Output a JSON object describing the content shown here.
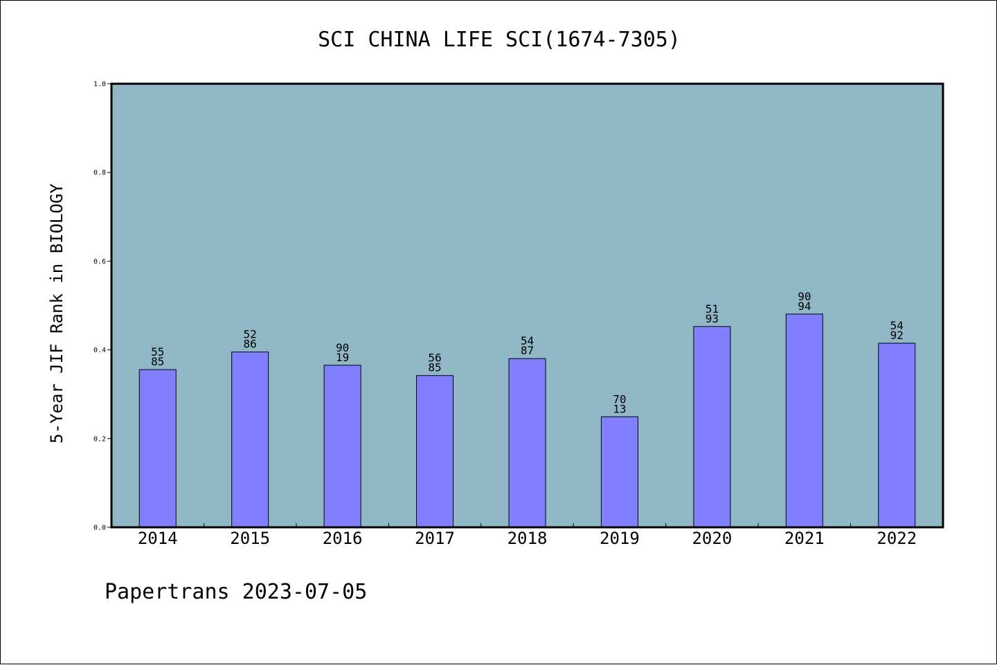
{
  "chart_data": {
    "type": "bar",
    "title": "SCI CHINA LIFE SCI(1674-7305)",
    "xlabel": "",
    "ylabel": "5-Year JIF Rank in BIOLOGY",
    "ylim": [
      0.0,
      1.0
    ],
    "yticks": [
      "0.0",
      "0.2",
      "0.4",
      "0.6",
      "0.8",
      "1.0"
    ],
    "grid": false,
    "legend": "none",
    "categories": [
      "2014",
      "2015",
      "2016",
      "2017",
      "2018",
      "2019",
      "2020",
      "2021",
      "2022"
    ],
    "values": [
      0.3555,
      0.3952,
      0.3654,
      0.3421,
      0.3803,
      0.2492,
      0.4527,
      0.4807,
      0.415
    ],
    "data_labels": [
      [
        "55",
        "85"
      ],
      [
        "52",
        "86"
      ],
      [
        "90",
        "19"
      ],
      [
        "56",
        "85"
      ],
      [
        "54",
        "87"
      ],
      [
        "70",
        "13"
      ],
      [
        "51",
        "93"
      ],
      [
        "90",
        "94"
      ],
      [
        "54",
        "92"
      ]
    ],
    "colors": {
      "plot_background": "#8fb7c5",
      "bar_fill": "#8080ff",
      "bar_stroke": "#000000"
    }
  },
  "footer": {
    "text": "Papertrans 2023-07-05"
  }
}
